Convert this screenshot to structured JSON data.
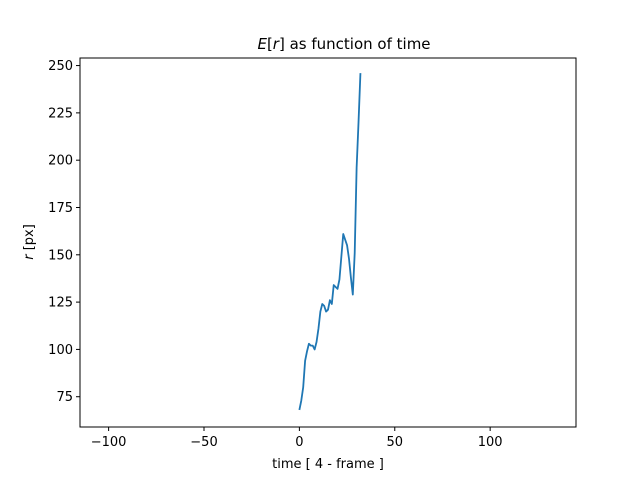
{
  "chart_data": {
    "type": "line",
    "title": "E[r] as function of time",
    "title_parts": {
      "italic_prefix": "E",
      "bracket_open": "[",
      "italic_var": "r",
      "bracket_close": "]",
      "rest": " as function of time"
    },
    "xlabel": "time [ 4 - frame ]",
    "ylabel": "r [px]",
    "ylabel_parts": {
      "italic_var": "r",
      "rest": " [px]"
    },
    "xlim": [
      -115,
      145
    ],
    "ylim": [
      59,
      254
    ],
    "xticks": [
      -100,
      -50,
      0,
      50,
      100
    ],
    "xtick_labels": [
      "−100",
      "−50",
      "0",
      "50",
      "100"
    ],
    "yticks": [
      75,
      100,
      125,
      150,
      175,
      200,
      225,
      250
    ],
    "ytick_labels": [
      "75",
      "100",
      "125",
      "150",
      "175",
      "200",
      "225",
      "250"
    ],
    "grid": false,
    "series": [
      {
        "name": "E[r]",
        "color": "#1f77b4",
        "x": [
          0,
          1,
          2,
          3,
          4,
          5,
          6,
          7,
          8,
          9,
          10,
          11,
          12,
          13,
          14,
          15,
          16,
          17,
          18,
          19,
          20,
          21,
          22,
          23,
          24,
          25,
          26,
          27,
          28,
          29,
          30,
          31,
          32
        ],
        "y": [
          68,
          73,
          80,
          94,
          99,
          103,
          102,
          102,
          100,
          104,
          111,
          120,
          124,
          123,
          120,
          121,
          126,
          124,
          134,
          133,
          132,
          137,
          149,
          161,
          158,
          155,
          148,
          138,
          129,
          151,
          196,
          220,
          246
        ]
      }
    ]
  }
}
